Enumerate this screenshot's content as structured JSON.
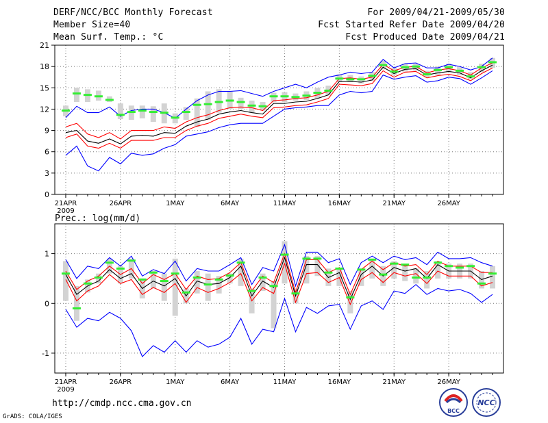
{
  "header": {
    "title": "DERF/NCC/BCC Monthly Forecast",
    "member_size": "Member Size=40",
    "variable_top": "Mean Surf. Temp.: °C",
    "period": "For 2009/04/21-2009/05/30",
    "refer_date": "Fcst Started Refer Date 2009/04/20",
    "produced_date": "Fcst Produced Date 2009/04/21"
  },
  "footer": {
    "url": "http://cmdp.ncc.cma.gov.cn",
    "credit": "GrADS: COLA/IGES",
    "logo_left_text": "BCC",
    "logo_right_text": "NCC"
  },
  "colors": {
    "envelope": "#0000ff",
    "spread": "#ff0000",
    "mean": "#000000",
    "box": "#d3d3d3",
    "median": "#33ee33",
    "grid": "#777777"
  },
  "chart_data": [
    {
      "type": "line",
      "title": "Mean Surf. Temp.: °C",
      "ylabel": "°C",
      "ylim": [
        0,
        21
      ],
      "yticks": [
        0,
        3,
        6,
        9,
        12,
        15,
        18,
        21
      ],
      "xlim": [
        0,
        41
      ],
      "xticks": [
        {
          "x": 1,
          "label": "21APR",
          "sub": "2009"
        },
        {
          "x": 6,
          "label": "26APR"
        },
        {
          "x": 11,
          "label": "1MAY"
        },
        {
          "x": 16,
          "label": "6MAY"
        },
        {
          "x": 21,
          "label": "11MAY"
        },
        {
          "x": 26,
          "label": "16MAY"
        },
        {
          "x": 31,
          "label": "21MAY"
        },
        {
          "x": 36,
          "label": "26MAY"
        }
      ],
      "x": [
        1,
        2,
        3,
        4,
        5,
        6,
        7,
        8,
        9,
        10,
        11,
        12,
        13,
        14,
        15,
        16,
        17,
        18,
        19,
        20,
        21,
        22,
        23,
        24,
        25,
        26,
        27,
        28,
        29,
        30,
        31,
        32,
        33,
        34,
        35,
        36,
        37,
        38,
        39,
        40
      ],
      "series": [
        {
          "name": "max",
          "color": "#0000ff",
          "values": [
            10.8,
            12.4,
            11.5,
            11.5,
            12.3,
            11.0,
            11.8,
            12.0,
            12.0,
            11.5,
            10.7,
            12.0,
            13.2,
            14.0,
            14.5,
            14.5,
            14.6,
            14.2,
            13.8,
            14.5,
            15.0,
            15.5,
            15.0,
            15.8,
            16.5,
            16.8,
            17.2,
            17.0,
            17.2,
            19.0,
            17.8,
            18.4,
            18.5,
            17.8,
            17.8,
            18.3,
            18.0,
            17.5,
            18.0,
            19.2
          ]
        },
        {
          "name": "upper",
          "color": "#ff0000",
          "values": [
            9.5,
            10.0,
            8.5,
            8.0,
            8.7,
            7.8,
            9.0,
            9.0,
            9.0,
            9.5,
            9.3,
            10.2,
            10.8,
            11.2,
            11.8,
            12.2,
            12.3,
            12.2,
            11.8,
            13.2,
            13.3,
            13.5,
            13.6,
            14.0,
            14.5,
            16.3,
            16.4,
            16.2,
            16.5,
            18.3,
            17.4,
            17.9,
            18.0,
            17.1,
            17.5,
            17.7,
            17.4,
            16.8,
            17.8,
            18.5
          ]
        },
        {
          "name": "mean",
          "color": "#000000",
          "values": [
            8.7,
            9.0,
            7.5,
            7.2,
            7.8,
            7.1,
            8.2,
            8.3,
            8.2,
            8.7,
            8.6,
            9.6,
            10.2,
            10.6,
            11.3,
            11.6,
            11.8,
            11.5,
            11.3,
            12.8,
            12.8,
            13.0,
            13.1,
            13.5,
            14.0,
            15.9,
            15.9,
            15.8,
            16.1,
            17.9,
            17.0,
            17.6,
            17.7,
            16.8,
            17.1,
            17.3,
            17.1,
            16.4,
            17.4,
            18.2
          ]
        },
        {
          "name": "lower",
          "color": "#ff0000",
          "values": [
            8.0,
            8.5,
            6.8,
            6.5,
            7.2,
            6.5,
            7.6,
            7.6,
            7.6,
            8.0,
            8.0,
            9.0,
            9.6,
            10.0,
            10.7,
            11.0,
            11.3,
            11.0,
            10.8,
            12.2,
            12.3,
            12.5,
            12.6,
            13.0,
            13.5,
            15.5,
            15.4,
            15.3,
            15.6,
            17.4,
            16.5,
            17.2,
            17.3,
            16.4,
            16.7,
            16.9,
            16.6,
            16.0,
            17.0,
            17.8
          ]
        },
        {
          "name": "min",
          "color": "#0000ff",
          "values": [
            5.5,
            6.8,
            4.0,
            3.3,
            5.2,
            4.3,
            5.8,
            5.5,
            5.7,
            6.5,
            7.0,
            8.2,
            8.5,
            8.8,
            9.4,
            9.8,
            10.0,
            10.0,
            10.0,
            11.0,
            12.0,
            12.2,
            12.3,
            12.5,
            12.5,
            14.0,
            14.5,
            14.3,
            14.5,
            16.8,
            16.2,
            16.5,
            16.7,
            15.8,
            16.0,
            16.5,
            16.3,
            15.5,
            16.4,
            17.4
          ]
        }
      ],
      "boxes": [
        {
          "lo": 11.0,
          "hi": 12.5,
          "median": 11.8
        },
        {
          "lo": 13.0,
          "hi": 15.0,
          "median": 14.2
        },
        {
          "lo": 13.0,
          "hi": 14.8,
          "median": 14.0
        },
        {
          "lo": 13.2,
          "hi": 14.6,
          "median": 13.8
        },
        {
          "lo": 13.0,
          "hi": 13.8,
          "median": 13.3
        },
        {
          "lo": 10.6,
          "hi": 12.8,
          "median": 11.2
        },
        {
          "lo": 10.5,
          "hi": 12.5,
          "median": 11.6
        },
        {
          "lo": 10.7,
          "hi": 12.5,
          "median": 11.8
        },
        {
          "lo": 10.2,
          "hi": 12.4,
          "median": 11.6
        },
        {
          "lo": 10.0,
          "hi": 12.8,
          "median": 11.5
        },
        {
          "lo": 10.0,
          "hi": 11.4,
          "median": 10.8
        },
        {
          "lo": 10.5,
          "hi": 12.3,
          "median": 11.6
        },
        {
          "lo": 9.5,
          "hi": 13.5,
          "median": 12.6
        },
        {
          "lo": 10.5,
          "hi": 14.5,
          "median": 12.7
        },
        {
          "lo": 11.5,
          "hi": 14.8,
          "median": 13.0
        },
        {
          "lo": 12.0,
          "hi": 14.5,
          "median": 13.2
        },
        {
          "lo": 12.0,
          "hi": 13.6,
          "median": 13.0
        },
        {
          "lo": 11.5,
          "hi": 13.2,
          "median": 12.5
        },
        {
          "lo": 11.8,
          "hi": 13.0,
          "median": 12.4
        },
        {
          "lo": 13.0,
          "hi": 14.3,
          "median": 13.8
        },
        {
          "lo": 13.0,
          "hi": 14.4,
          "median": 13.8
        },
        {
          "lo": 13.2,
          "hi": 14.2,
          "median": 13.7
        },
        {
          "lo": 13.3,
          "hi": 14.5,
          "median": 13.9
        },
        {
          "lo": 13.5,
          "hi": 15.0,
          "median": 14.3
        },
        {
          "lo": 14.0,
          "hi": 15.3,
          "median": 14.6
        },
        {
          "lo": 15.8,
          "hi": 16.9,
          "median": 16.3
        },
        {
          "lo": 15.8,
          "hi": 16.8,
          "median": 16.2
        },
        {
          "lo": 15.6,
          "hi": 16.6,
          "median": 16.2
        },
        {
          "lo": 16.0,
          "hi": 17.2,
          "median": 16.7
        },
        {
          "lo": 17.6,
          "hi": 18.8,
          "median": 18.2
        },
        {
          "lo": 16.8,
          "hi": 17.8,
          "median": 17.3
        },
        {
          "lo": 17.3,
          "hi": 18.4,
          "median": 17.9
        },
        {
          "lo": 17.4,
          "hi": 18.4,
          "median": 18.0
        },
        {
          "lo": 16.5,
          "hi": 17.4,
          "median": 16.9
        },
        {
          "lo": 16.8,
          "hi": 18.0,
          "median": 17.5
        },
        {
          "lo": 17.2,
          "hi": 18.4,
          "median": 17.9
        },
        {
          "lo": 16.8,
          "hi": 17.9,
          "median": 17.4
        },
        {
          "lo": 16.2,
          "hi": 17.2,
          "median": 16.6
        },
        {
          "lo": 17.2,
          "hi": 18.4,
          "median": 17.9
        },
        {
          "lo": 17.8,
          "hi": 19.2,
          "median": 18.6
        }
      ]
    },
    {
      "type": "line",
      "title": "Prec.: log(mm/d)",
      "ylabel": "log(mm/d)",
      "ylim": [
        -1.4,
        1.6
      ],
      "yticks": [
        -1,
        0,
        1
      ],
      "xlim": [
        0,
        41
      ],
      "xticks": [
        {
          "x": 1,
          "label": "21APR",
          "sub": "2009"
        },
        {
          "x": 6,
          "label": "26APR"
        },
        {
          "x": 11,
          "label": "1MAY"
        },
        {
          "x": 16,
          "label": "6MAY"
        },
        {
          "x": 21,
          "label": "11MAY"
        },
        {
          "x": 26,
          "label": "16MAY"
        },
        {
          "x": 31,
          "label": "21MAY"
        },
        {
          "x": 36,
          "label": "26MAY"
        }
      ],
      "x": [
        1,
        2,
        3,
        4,
        5,
        6,
        7,
        8,
        9,
        10,
        11,
        12,
        13,
        14,
        15,
        16,
        17,
        18,
        19,
        20,
        21,
        22,
        23,
        24,
        25,
        26,
        27,
        28,
        29,
        30,
        31,
        32,
        33,
        34,
        35,
        36,
        37,
        38,
        39,
        40
      ],
      "series": [
        {
          "name": "max",
          "color": "#0000ff",
          "values": [
            0.88,
            0.5,
            0.75,
            0.7,
            0.92,
            0.75,
            0.95,
            0.55,
            0.68,
            0.6,
            0.85,
            0.45,
            0.7,
            0.65,
            0.65,
            0.78,
            0.92,
            0.38,
            0.72,
            0.65,
            1.18,
            0.35,
            1.03,
            1.03,
            0.82,
            0.9,
            0.38,
            0.82,
            0.95,
            0.82,
            0.95,
            0.88,
            0.92,
            0.78,
            1.03,
            0.9,
            0.9,
            0.92,
            0.82,
            0.75
          ]
        },
        {
          "name": "upper",
          "color": "#ff0000",
          "values": [
            0.65,
            0.28,
            0.45,
            0.55,
            0.75,
            0.58,
            0.7,
            0.4,
            0.58,
            0.48,
            0.6,
            0.28,
            0.55,
            0.48,
            0.5,
            0.62,
            0.82,
            0.25,
            0.55,
            0.42,
            1.0,
            0.22,
            0.88,
            0.88,
            0.62,
            0.72,
            0.18,
            0.68,
            0.85,
            0.68,
            0.82,
            0.75,
            0.78,
            0.58,
            0.85,
            0.75,
            0.75,
            0.75,
            0.62,
            0.62
          ]
        },
        {
          "name": "mean",
          "color": "#000000",
          "values": [
            0.58,
            0.18,
            0.35,
            0.45,
            0.68,
            0.5,
            0.6,
            0.3,
            0.45,
            0.35,
            0.5,
            0.15,
            0.45,
            0.38,
            0.4,
            0.52,
            0.75,
            0.15,
            0.45,
            0.32,
            0.92,
            0.15,
            0.78,
            0.78,
            0.52,
            0.62,
            0.08,
            0.58,
            0.75,
            0.55,
            0.72,
            0.65,
            0.7,
            0.5,
            0.78,
            0.65,
            0.65,
            0.65,
            0.48,
            0.55
          ]
        },
        {
          "name": "lower",
          "color": "#ff0000",
          "values": [
            0.48,
            0.05,
            0.25,
            0.35,
            0.58,
            0.4,
            0.48,
            0.18,
            0.32,
            0.22,
            0.4,
            0.02,
            0.32,
            0.22,
            0.3,
            0.42,
            0.6,
            0.05,
            0.32,
            0.2,
            0.8,
            0.02,
            0.6,
            0.62,
            0.42,
            0.52,
            -0.02,
            0.48,
            0.62,
            0.42,
            0.62,
            0.55,
            0.6,
            0.4,
            0.65,
            0.55,
            0.55,
            0.55,
            0.35,
            0.42
          ]
        },
        {
          "name": "min",
          "color": "#0000ff",
          "values": [
            -0.12,
            -0.48,
            -0.3,
            -0.35,
            -0.18,
            -0.3,
            -0.55,
            -1.07,
            -0.85,
            -0.98,
            -0.75,
            -0.98,
            -0.75,
            -0.88,
            -0.82,
            -0.68,
            -0.3,
            -0.82,
            -0.52,
            -0.57,
            0.1,
            -0.57,
            -0.08,
            -0.2,
            -0.05,
            -0.02,
            -0.52,
            -0.05,
            0.05,
            -0.12,
            0.25,
            0.2,
            0.38,
            0.18,
            0.3,
            0.25,
            0.28,
            0.2,
            0.02,
            0.18
          ]
        }
      ],
      "boxes": [
        {
          "lo": 0.05,
          "hi": 0.85,
          "median": 0.6
        },
        {
          "lo": -0.35,
          "hi": 0.35,
          "median": -0.1
        },
        {
          "lo": 0.22,
          "hi": 0.48,
          "median": 0.4
        },
        {
          "lo": 0.4,
          "hi": 0.6,
          "median": 0.52
        },
        {
          "lo": 0.6,
          "hi": 0.9,
          "median": 0.82
        },
        {
          "lo": 0.4,
          "hi": 0.75,
          "median": 0.7
        },
        {
          "lo": 0.5,
          "hi": 0.9,
          "median": 0.86
        },
        {
          "lo": 0.1,
          "hi": 0.5,
          "median": 0.48
        },
        {
          "lo": 0.3,
          "hi": 0.65,
          "median": 0.62
        },
        {
          "lo": 0.05,
          "hi": 0.6,
          "median": 0.45
        },
        {
          "lo": -0.25,
          "hi": 0.9,
          "median": 0.6
        },
        {
          "lo": 0.0,
          "hi": 0.3,
          "median": 0.22
        },
        {
          "lo": 0.2,
          "hi": 0.65,
          "median": 0.52
        },
        {
          "lo": 0.05,
          "hi": 0.6,
          "median": 0.38
        },
        {
          "lo": 0.2,
          "hi": 0.55,
          "median": 0.48
        },
        {
          "lo": 0.4,
          "hi": 0.6,
          "median": 0.56
        },
        {
          "lo": 0.35,
          "hi": 0.9,
          "median": 0.82
        },
        {
          "lo": -0.2,
          "hi": 0.3,
          "median": 0.25
        },
        {
          "lo": 0.25,
          "hi": 0.6,
          "median": 0.52
        },
        {
          "lo": -0.5,
          "hi": 0.45,
          "median": 0.35
        },
        {
          "lo": 0.4,
          "hi": 1.25,
          "median": 0.98
        },
        {
          "lo": 0.0,
          "hi": 0.3,
          "median": 0.2
        },
        {
          "lo": 0.4,
          "hi": 0.95,
          "median": 0.9
        },
        {
          "lo": 0.55,
          "hi": 0.95,
          "median": 0.9
        },
        {
          "lo": 0.35,
          "hi": 0.7,
          "median": 0.62
        },
        {
          "lo": 0.35,
          "hi": 0.7,
          "median": 0.7
        },
        {
          "lo": -0.2,
          "hi": 0.25,
          "median": 0.12
        },
        {
          "lo": 0.35,
          "hi": 0.7,
          "median": 0.68
        },
        {
          "lo": 0.5,
          "hi": 0.9,
          "median": 0.88
        },
        {
          "lo": 0.35,
          "hi": 0.75,
          "median": 0.58
        },
        {
          "lo": 0.5,
          "hi": 0.85,
          "median": 0.8
        },
        {
          "lo": 0.45,
          "hi": 0.8,
          "median": 0.78
        },
        {
          "lo": 0.4,
          "hi": 0.7,
          "median": 0.52
        },
        {
          "lo": 0.3,
          "hi": 0.65,
          "median": 0.52
        },
        {
          "lo": 0.5,
          "hi": 0.85,
          "median": 0.82
        },
        {
          "lo": 0.5,
          "hi": 0.8,
          "median": 0.75
        },
        {
          "lo": 0.5,
          "hi": 0.8,
          "median": 0.72
        },
        {
          "lo": 0.5,
          "hi": 0.8,
          "median": 0.75
        },
        {
          "lo": 0.3,
          "hi": 0.65,
          "median": 0.4
        },
        {
          "lo": 0.3,
          "hi": 0.75,
          "median": 0.6
        }
      ]
    }
  ]
}
